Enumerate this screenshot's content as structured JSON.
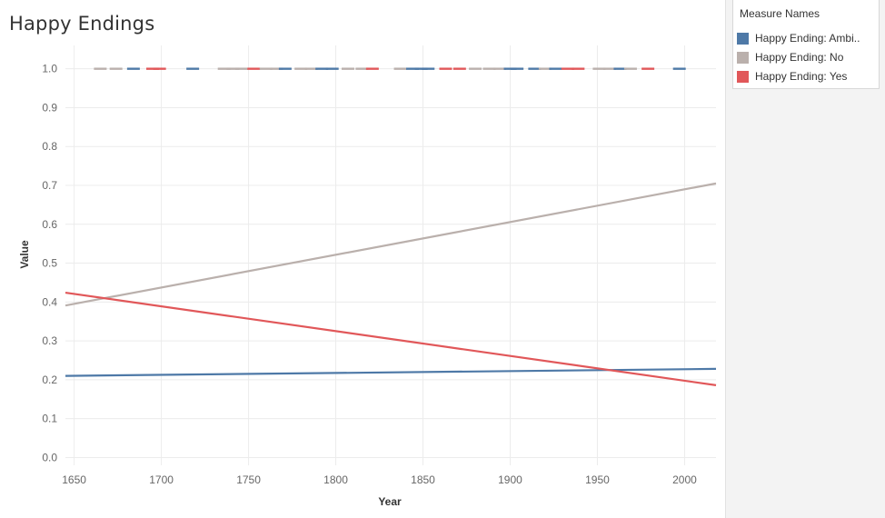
{
  "title": "Happy Endings",
  "legend": {
    "title": "Measure Names",
    "items": [
      {
        "label": "Happy Ending: Ambi..",
        "color": "#4e79a7"
      },
      {
        "label": "Happy Ending: No",
        "color": "#bab0ac"
      },
      {
        "label": "Happy Ending: Yes",
        "color": "#e15759"
      }
    ]
  },
  "chart_data": {
    "type": "line",
    "title": "Happy Endings",
    "xlabel": "Year",
    "ylabel": "Value",
    "xlim": [
      1645,
      2018
    ],
    "ylim": [
      -0.02,
      1.06
    ],
    "x_ticks": [
      "1650",
      "1700",
      "1750",
      "1800",
      "1850",
      "1900",
      "1950",
      "2000"
    ],
    "y_ticks": [
      "0.0",
      "0.1",
      "0.2",
      "0.3",
      "0.4",
      "0.5",
      "0.6",
      "0.7",
      "0.8",
      "0.9",
      "1.0"
    ],
    "grid": true,
    "legend_position": "top-right",
    "trend_lines": [
      {
        "name": "Happy Ending: Ambi..",
        "color": "#4e79a7",
        "x": [
          1645,
          2018
        ],
        "y": [
          0.21,
          0.228
        ]
      },
      {
        "name": "Happy Ending: No",
        "color": "#bab0ac",
        "x": [
          1645,
          2018
        ],
        "y": [
          0.391,
          0.705
        ]
      },
      {
        "name": "Happy Ending: Yes",
        "color": "#e15759",
        "x": [
          1645,
          2018
        ],
        "y": [
          0.424,
          0.186
        ]
      }
    ],
    "marks": {
      "y_value": 1.0,
      "points": [
        {
          "year": 1665,
          "series": "Happy Ending: No"
        },
        {
          "year": 1674,
          "series": "Happy Ending: No"
        },
        {
          "year": 1684,
          "series": "Happy Ending: Ambi.."
        },
        {
          "year": 1695,
          "series": "Happy Ending: Yes"
        },
        {
          "year": 1699,
          "series": "Happy Ending: Yes"
        },
        {
          "year": 1718,
          "series": "Happy Ending: Ambi.."
        },
        {
          "year": 1736,
          "series": "Happy Ending: No"
        },
        {
          "year": 1741,
          "series": "Happy Ending: No"
        },
        {
          "year": 1746,
          "series": "Happy Ending: No"
        },
        {
          "year": 1753,
          "series": "Happy Ending: Yes"
        },
        {
          "year": 1760,
          "series": "Happy Ending: No"
        },
        {
          "year": 1766,
          "series": "Happy Ending: No"
        },
        {
          "year": 1771,
          "series": "Happy Ending: Ambi.."
        },
        {
          "year": 1780,
          "series": "Happy Ending: No"
        },
        {
          "year": 1786,
          "series": "Happy Ending: No"
        },
        {
          "year": 1792,
          "series": "Happy Ending: Ambi.."
        },
        {
          "year": 1798,
          "series": "Happy Ending: Ambi.."
        },
        {
          "year": 1807,
          "series": "Happy Ending: No"
        },
        {
          "year": 1815,
          "series": "Happy Ending: No"
        },
        {
          "year": 1821,
          "series": "Happy Ending: Yes"
        },
        {
          "year": 1837,
          "series": "Happy Ending: No"
        },
        {
          "year": 1844,
          "series": "Happy Ending: Ambi.."
        },
        {
          "year": 1849,
          "series": "Happy Ending: Ambi.."
        },
        {
          "year": 1853,
          "series": "Happy Ending: Ambi.."
        },
        {
          "year": 1863,
          "series": "Happy Ending: Yes"
        },
        {
          "year": 1871,
          "series": "Happy Ending: Yes"
        },
        {
          "year": 1880,
          "series": "Happy Ending: No"
        },
        {
          "year": 1888,
          "series": "Happy Ending: No"
        },
        {
          "year": 1894,
          "series": "Happy Ending: No"
        },
        {
          "year": 1900,
          "series": "Happy Ending: Ambi.."
        },
        {
          "year": 1904,
          "series": "Happy Ending: Ambi.."
        },
        {
          "year": 1914,
          "series": "Happy Ending: Ambi.."
        },
        {
          "year": 1920,
          "series": "Happy Ending: No"
        },
        {
          "year": 1926,
          "series": "Happy Ending: Ambi.."
        },
        {
          "year": 1933,
          "series": "Happy Ending: Yes"
        },
        {
          "year": 1939,
          "series": "Happy Ending: Yes"
        },
        {
          "year": 1951,
          "series": "Happy Ending: No"
        },
        {
          "year": 1957,
          "series": "Happy Ending: No"
        },
        {
          "year": 1963,
          "series": "Happy Ending: Ambi.."
        },
        {
          "year": 1969,
          "series": "Happy Ending: No"
        },
        {
          "year": 1979,
          "series": "Happy Ending: Yes"
        },
        {
          "year": 1997,
          "series": "Happy Ending: Ambi.."
        }
      ]
    }
  }
}
